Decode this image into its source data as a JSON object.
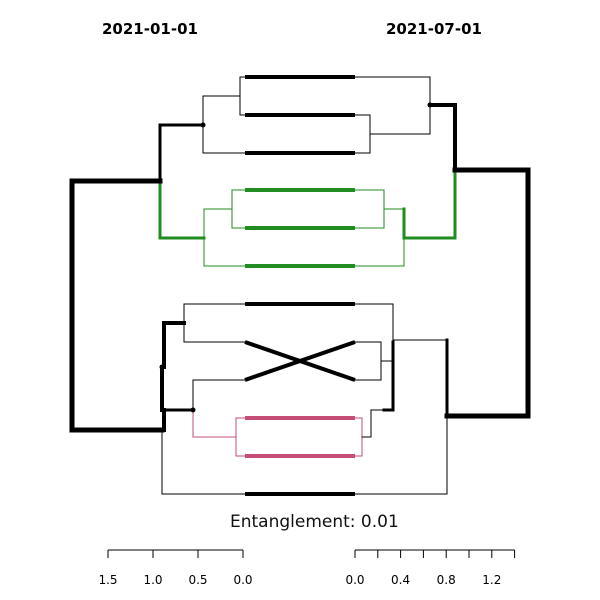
{
  "titles": {
    "left": "2021-01-01",
    "right": "2021-07-01"
  },
  "entanglement_label": "Entanglement: 0.01",
  "colors": {
    "default": "#000000",
    "green": "#228B22",
    "pink": "#C64D73"
  },
  "left_axis": {
    "ticks": [
      1.5,
      1.0,
      0.5,
      0.0
    ],
    "labels": [
      "1.5",
      "1.0",
      "0.5",
      "0.0"
    ]
  },
  "right_axis": {
    "ticks": [
      0.0,
      0.2,
      0.4,
      0.6,
      0.8,
      1.0,
      1.2,
      1.4
    ],
    "labels": [
      "0.0",
      "0.4",
      "0.8",
      "1.2"
    ]
  }
}
